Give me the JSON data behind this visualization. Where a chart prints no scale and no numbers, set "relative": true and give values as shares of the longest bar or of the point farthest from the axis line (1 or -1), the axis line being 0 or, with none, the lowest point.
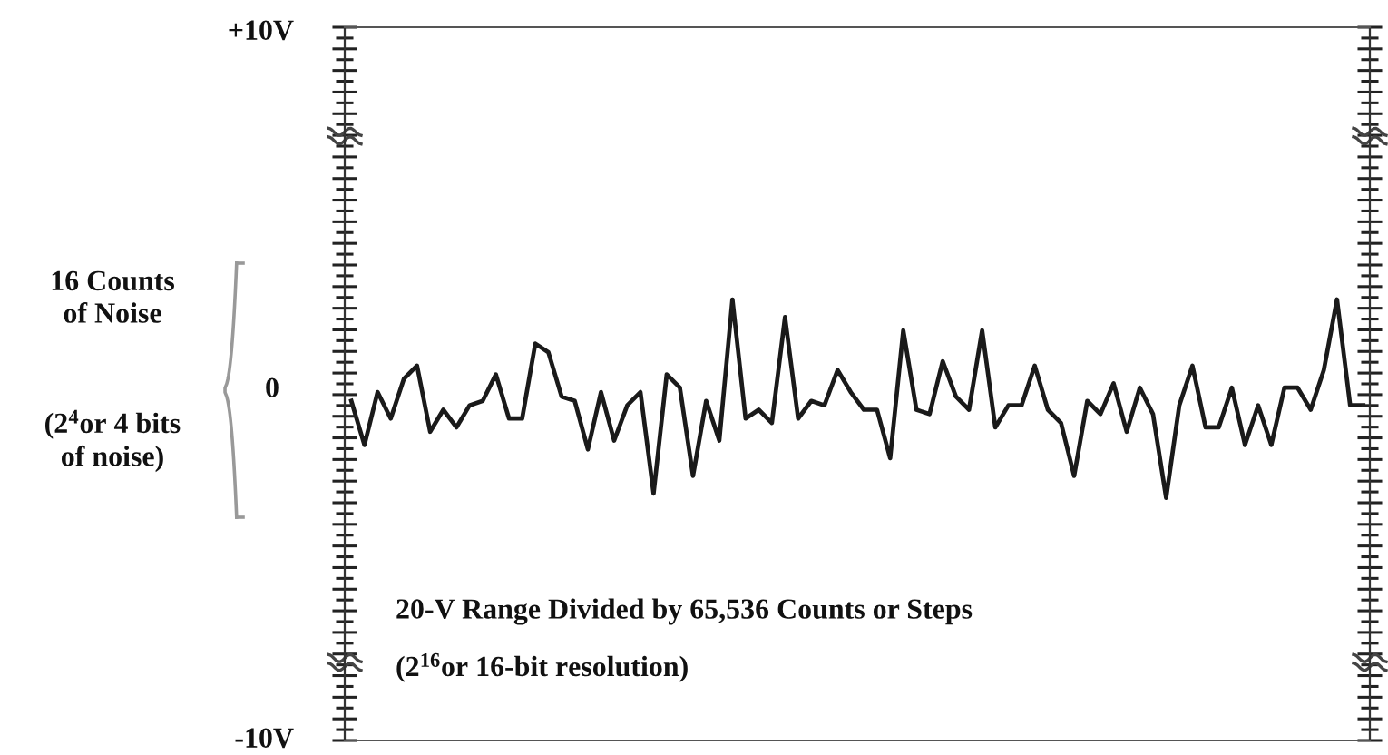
{
  "chart_data": {
    "type": "line",
    "relative": true,
    "categories": [
      null,
      null,
      null,
      null,
      null,
      null,
      null,
      null,
      null,
      null,
      null,
      null,
      null,
      null,
      null,
      null,
      null,
      null,
      null,
      null,
      null,
      null,
      null,
      null,
      null,
      null,
      null,
      null,
      null,
      null,
      null,
      null,
      null,
      null,
      null,
      null,
      null,
      null,
      null,
      null,
      null,
      null,
      null,
      null,
      null,
      null,
      null,
      null,
      null,
      null,
      null,
      null,
      null,
      null,
      null,
      null,
      null,
      null,
      null,
      null,
      null,
      null,
      null,
      null,
      null,
      null,
      null,
      null,
      null,
      null,
      null,
      null,
      null,
      null,
      null,
      null,
      null,
      null
    ],
    "series": [
      {
        "color": "#1a1a1a",
        "values": [
          0.77,
          0.67,
          0.79,
          0.73,
          0.82,
          0.85,
          0.7,
          0.75,
          0.71,
          0.76,
          0.77,
          0.83,
          0.73,
          0.73,
          0.9,
          0.88,
          0.78,
          0.77,
          0.66,
          0.79,
          0.68,
          0.76,
          0.79,
          0.56,
          0.83,
          0.8,
          0.6,
          0.77,
          0.68,
          1,
          0.73,
          0.75,
          0.72,
          0.96,
          0.73,
          0.77,
          0.76,
          0.84,
          0.79,
          0.75,
          0.75,
          0.64,
          0.93,
          0.75,
          0.74,
          0.86,
          0.78,
          0.75,
          0.93,
          0.71,
          0.76,
          0.76,
          0.85,
          0.75,
          0.72,
          0.6,
          0.77,
          0.74,
          0.81,
          0.7,
          0.8,
          0.74,
          0.55,
          0.76,
          0.85,
          0.71,
          0.71,
          0.8,
          0.67,
          0.76,
          0.67,
          0.8,
          0.8,
          0.75,
          0.84,
          1,
          0.76,
          0.76
        ]
      }
    ],
    "annotations": [
      "+10V",
      "0",
      "-10V",
      "16 Counts\nof Noise",
      "(2$^{4}$or 4 bits\nof noise)",
      "20-V Range Divided by 65,536 Counts or Steps",
      "(2$^{16}$or 16-bit resolution)"
    ],
    "legend": false,
    "marker": "none",
    "line_style": "solid"
  }
}
